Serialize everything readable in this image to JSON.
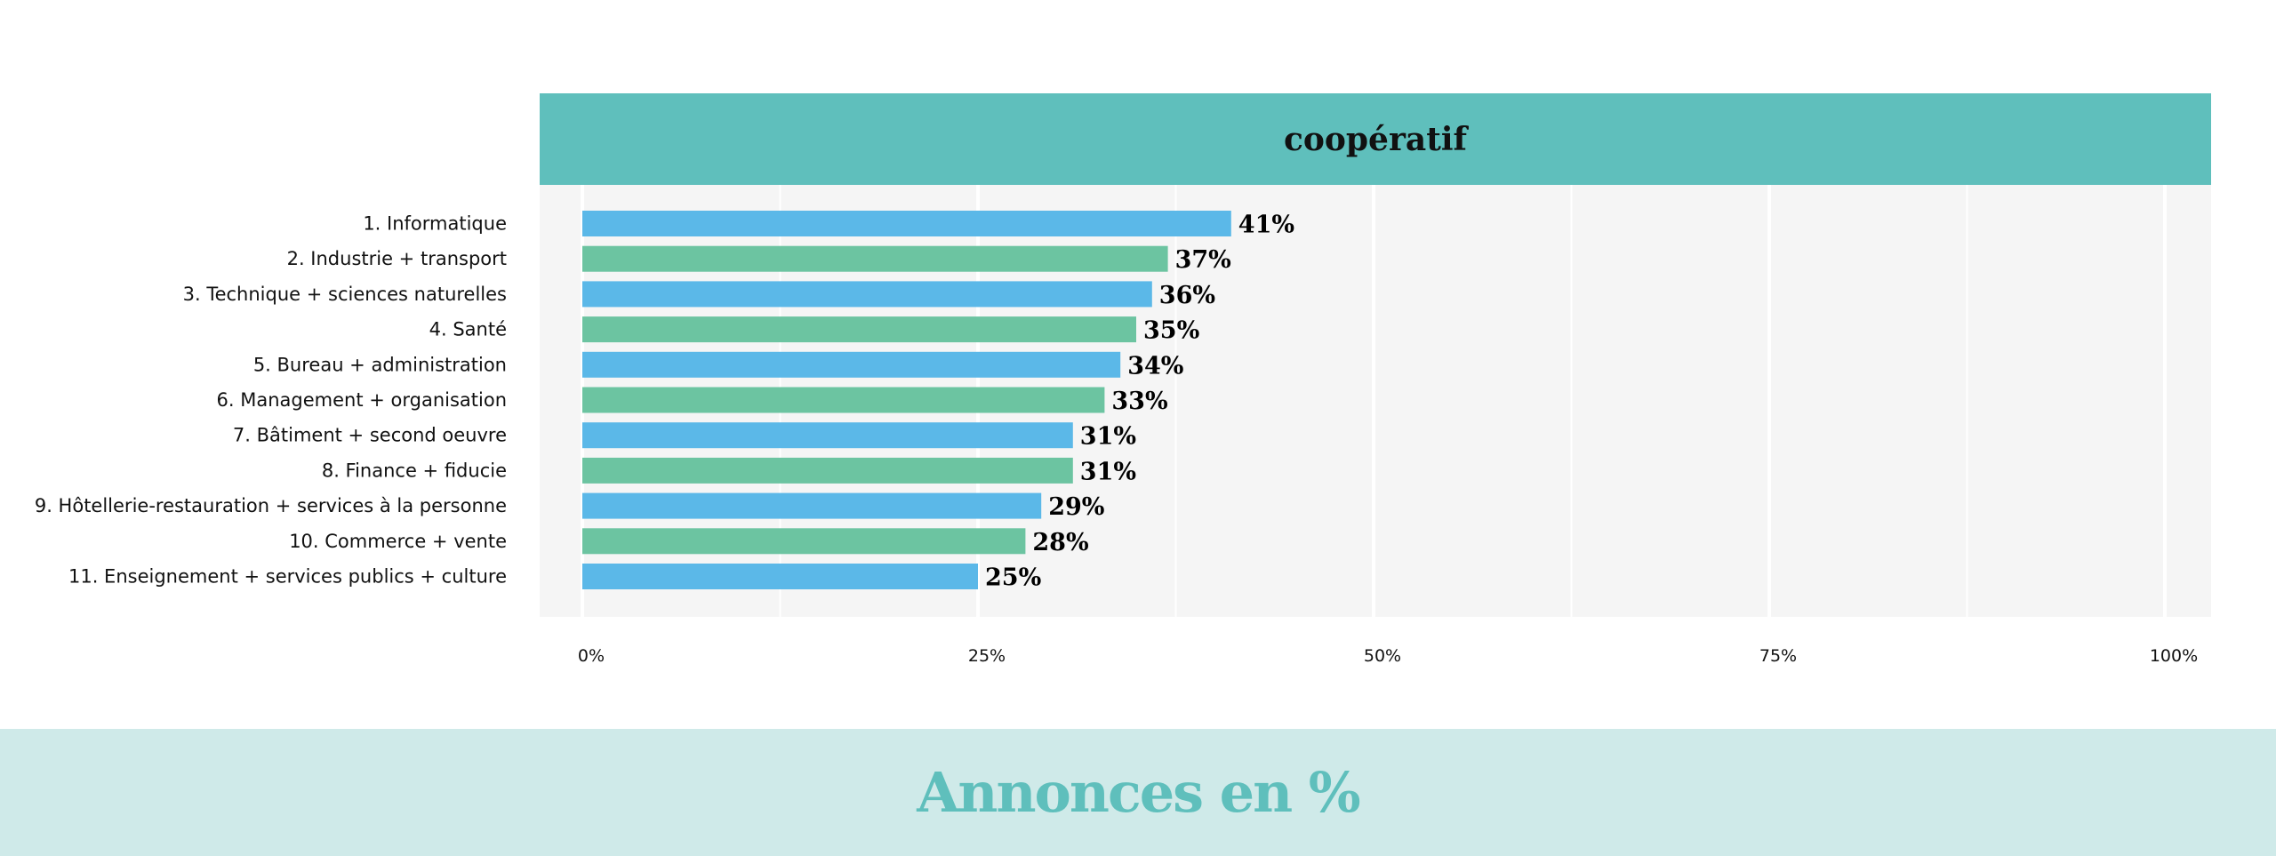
{
  "chart_data": {
    "type": "bar",
    "orientation": "horizontal",
    "panel_title": "coopératif",
    "categories": [
      "1. Informatique",
      "2. Industrie + transport",
      "3. Technique + sciences naturelles",
      "4. Santé",
      "5. Bureau + administration",
      "6. Management + organisation",
      "7. Bâtiment + second oeuvre",
      "8. Finance + fiducie",
      "9. Hôtellerie-restauration + services à la personne",
      "10. Commerce + vente",
      "11. Enseignement + services publics + culture"
    ],
    "values": [
      41,
      37,
      36,
      35,
      34,
      33,
      31,
      31,
      29,
      28,
      25
    ],
    "value_labels": [
      "41%",
      "37%",
      "36%",
      "35%",
      "34%",
      "33%",
      "31%",
      "31%",
      "29%",
      "28%",
      "25%"
    ],
    "bar_colors": [
      "#5bb8e8",
      "#6cc4a1"
    ],
    "xlim": [
      0,
      100
    ],
    "x_ticks": [
      0,
      25,
      50,
      75,
      100
    ],
    "x_tick_labels": [
      "0%",
      "25%",
      "50%",
      "75%",
      "100%"
    ],
    "grid": true,
    "xlabel": "Annonces en %"
  },
  "colors": {
    "header": "#5fbfbc",
    "panel_bg": "#f5f5f5",
    "footer_bg": "#cfeae9"
  }
}
